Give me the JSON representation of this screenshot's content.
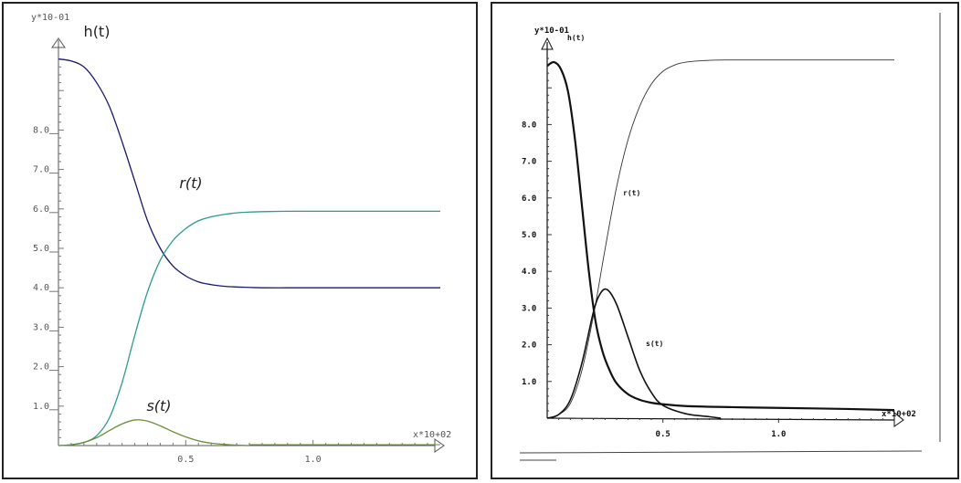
{
  "chart_data": [
    {
      "type": "line",
      "title": "",
      "xlabel": "x*10+02",
      "ylabel": "y*10-01",
      "xlim": [
        0,
        1.5
      ],
      "ylim": [
        0,
        10
      ],
      "x_ticks": [
        0.5,
        1.0
      ],
      "x_tick_labels": [
        "0.5",
        "1.0"
      ],
      "y_ticks": [
        1,
        2,
        3,
        4,
        5,
        6,
        7,
        8
      ],
      "y_tick_labels": [
        "1.0",
        "2.0",
        "3.0",
        "4.0",
        "5.0",
        "6.0",
        "7.0",
        "8.0"
      ],
      "grid": false,
      "series": [
        {
          "name": "h(t)",
          "color": "#1a1a6e",
          "x": [
            0,
            0.05,
            0.1,
            0.15,
            0.2,
            0.25,
            0.3,
            0.35,
            0.4,
            0.45,
            0.5,
            0.55,
            0.6,
            0.65,
            0.7,
            0.75,
            0.8,
            0.9,
            1.0,
            1.2,
            1.5
          ],
          "values": [
            9.8,
            9.75,
            9.6,
            9.2,
            8.6,
            7.7,
            6.7,
            5.7,
            5.0,
            4.55,
            4.3,
            4.15,
            4.08,
            4.04,
            4.02,
            4.01,
            4.0,
            4.0,
            4.0,
            4.0,
            4.0
          ]
        },
        {
          "name": "r(t)",
          "color": "#2e9b8f",
          "x": [
            0,
            0.05,
            0.1,
            0.15,
            0.2,
            0.25,
            0.3,
            0.35,
            0.4,
            0.45,
            0.5,
            0.55,
            0.6,
            0.65,
            0.7,
            0.75,
            0.8,
            0.9,
            1.0,
            1.2,
            1.5
          ],
          "values": [
            0,
            0.02,
            0.08,
            0.25,
            0.7,
            1.6,
            2.8,
            3.9,
            4.7,
            5.2,
            5.5,
            5.7,
            5.8,
            5.86,
            5.9,
            5.92,
            5.93,
            5.94,
            5.94,
            5.94,
            5.94
          ]
        },
        {
          "name": "s(t)",
          "color": "#6b8e3a",
          "x": [
            0,
            0.05,
            0.1,
            0.15,
            0.2,
            0.25,
            0.3,
            0.35,
            0.4,
            0.45,
            0.5,
            0.55,
            0.6,
            0.65,
            0.7,
            0.75
          ],
          "values": [
            0,
            0.02,
            0.08,
            0.2,
            0.38,
            0.55,
            0.65,
            0.62,
            0.5,
            0.35,
            0.22,
            0.12,
            0.06,
            0.03,
            0.01,
            0
          ]
        }
      ]
    },
    {
      "type": "line",
      "title": "",
      "xlabel": "x*10+02",
      "ylabel": "y*10-01",
      "xlim": [
        0,
        1.5
      ],
      "ylim": [
        0,
        10
      ],
      "x_ticks": [
        0.5,
        1.0
      ],
      "x_tick_labels": [
        "0.5",
        "1.0"
      ],
      "y_ticks": [
        1,
        2,
        3,
        4,
        5,
        6,
        7,
        8
      ],
      "y_tick_labels": [
        "1.0",
        "2.0",
        "3.0",
        "4.0",
        "5.0",
        "6.0",
        "7.0",
        "8.0"
      ],
      "grid": false,
      "series": [
        {
          "name": "h(t)",
          "color": "#111111",
          "x": [
            0,
            0.03,
            0.06,
            0.09,
            0.12,
            0.15,
            0.18,
            0.21,
            0.24,
            0.27,
            0.3,
            0.35,
            0.4,
            0.45,
            0.5,
            0.6,
            0.8,
            1.0,
            1.3,
            1.5
          ],
          "values": [
            9.6,
            9.7,
            9.5,
            8.9,
            7.6,
            5.8,
            4.0,
            2.6,
            1.8,
            1.3,
            0.95,
            0.65,
            0.5,
            0.42,
            0.38,
            0.33,
            0.3,
            0.28,
            0.25,
            0.22
          ]
        },
        {
          "name": "r(t)",
          "color": "#333333",
          "x": [
            0,
            0.05,
            0.1,
            0.15,
            0.2,
            0.25,
            0.3,
            0.35,
            0.4,
            0.45,
            0.5,
            0.55,
            0.6,
            0.7,
            0.8,
            1.0,
            1.3,
            1.5
          ],
          "values": [
            0,
            0.1,
            0.4,
            1.3,
            2.8,
            4.6,
            6.3,
            7.6,
            8.5,
            9.1,
            9.45,
            9.62,
            9.7,
            9.75,
            9.76,
            9.76,
            9.76,
            9.76
          ]
        },
        {
          "name": "s(t)",
          "color": "#111111",
          "x": [
            0,
            0.05,
            0.1,
            0.15,
            0.2,
            0.23,
            0.26,
            0.3,
            0.35,
            0.4,
            0.45,
            0.5,
            0.6,
            0.7,
            0.75
          ],
          "values": [
            0,
            0.1,
            0.5,
            1.5,
            2.9,
            3.4,
            3.5,
            3.1,
            2.2,
            1.3,
            0.7,
            0.35,
            0.12,
            0.04,
            0
          ]
        }
      ]
    }
  ],
  "left_labels": {
    "y_axis_title": "y*10-01",
    "x_axis_title": "x*10+02",
    "h_label": "h(t)",
    "r_label": "r(t)",
    "s_label": "s(t)"
  },
  "right_labels": {
    "y_axis_title": "y*10-01",
    "x_axis_title": "x*10+02",
    "h_label": "h(t)",
    "r_label": "r(t)",
    "s_label": "s(t)"
  }
}
